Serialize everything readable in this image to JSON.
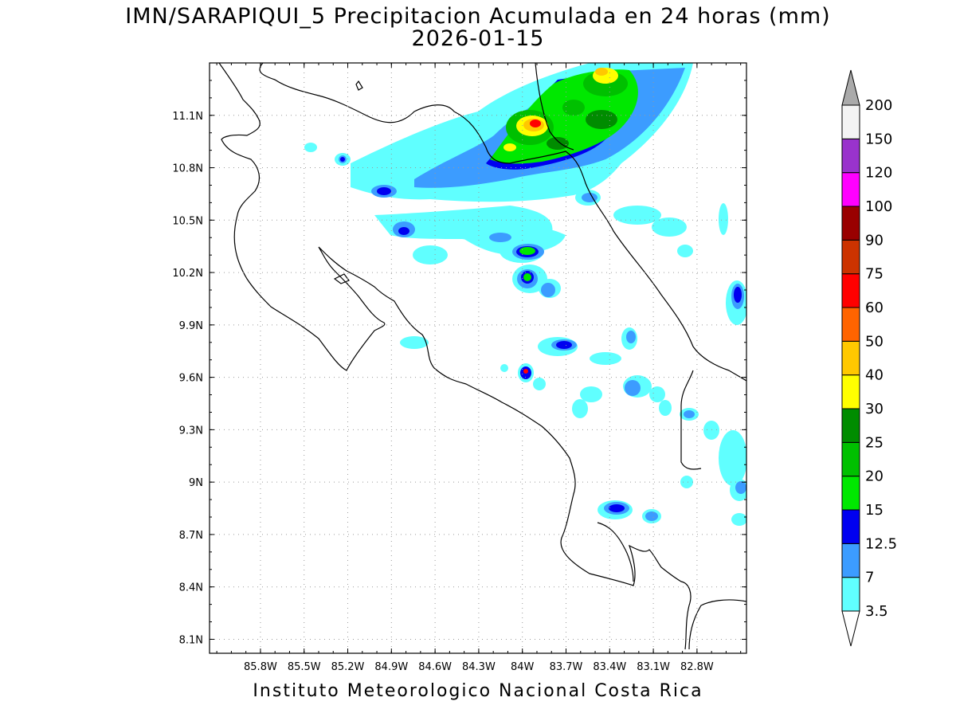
{
  "title": {
    "line1": "IMN/SARAPIQUI_5 Precipitacion Acumulada en 24 horas (mm)",
    "line2": "2026-01-15"
  },
  "credit": "Instituto Meteorologico Nacional Costa Rica",
  "map": {
    "lon_range": [
      -86.15,
      -82.46
    ],
    "lat_range": [
      8.02,
      11.4
    ],
    "lon_ticks": [
      {
        "value": -85.8,
        "label": "85.8W"
      },
      {
        "value": -85.5,
        "label": "85.5W"
      },
      {
        "value": -85.2,
        "label": "85.2W"
      },
      {
        "value": -84.9,
        "label": "84.9W"
      },
      {
        "value": -84.6,
        "label": "84.6W"
      },
      {
        "value": -84.3,
        "label": "84.3W"
      },
      {
        "value": -84.0,
        "label": "84W"
      },
      {
        "value": -83.7,
        "label": "83.7W"
      },
      {
        "value": -83.4,
        "label": "83.4W"
      },
      {
        "value": -83.1,
        "label": "83.1W"
      },
      {
        "value": -82.8,
        "label": "82.8W"
      }
    ],
    "lat_ticks": [
      {
        "value": 11.1,
        "label": "11.1N"
      },
      {
        "value": 10.8,
        "label": "10.8N"
      },
      {
        "value": 10.5,
        "label": "10.5N"
      },
      {
        "value": 10.2,
        "label": "10.2N"
      },
      {
        "value": 9.9,
        "label": "9.9N"
      },
      {
        "value": 9.6,
        "label": "9.6N"
      },
      {
        "value": 9.3,
        "label": "9.3N"
      },
      {
        "value": 9.0,
        "label": "9N"
      },
      {
        "value": 8.7,
        "label": "8.7N"
      },
      {
        "value": 8.4,
        "label": "8.4N"
      },
      {
        "value": 8.1,
        "label": "8.1N"
      }
    ],
    "grid": true
  },
  "colorbar": {
    "unit": "mm",
    "levels": [
      {
        "value": "3.5",
        "color": "#60ffff"
      },
      {
        "value": "7",
        "color": "#3c9cff"
      },
      {
        "value": "12.5",
        "color": "#0000f0"
      },
      {
        "value": "15",
        "color": "#00e800"
      },
      {
        "value": "20",
        "color": "#00c000"
      },
      {
        "value": "25",
        "color": "#008c00"
      },
      {
        "value": "30",
        "color": "#ffff00"
      },
      {
        "value": "40",
        "color": "#ffc800"
      },
      {
        "value": "50",
        "color": "#ff6400"
      },
      {
        "value": "60",
        "color": "#ff0000"
      },
      {
        "value": "75",
        "color": "#cc3300"
      },
      {
        "value": "90",
        "color": "#990000"
      },
      {
        "value": "100",
        "color": "#ff00ff"
      },
      {
        "value": "120",
        "color": "#9933cc"
      },
      {
        "value": "150",
        "color": "#f4f4f4"
      },
      {
        "value": "200",
        "color": "#aaaaaa"
      }
    ]
  }
}
